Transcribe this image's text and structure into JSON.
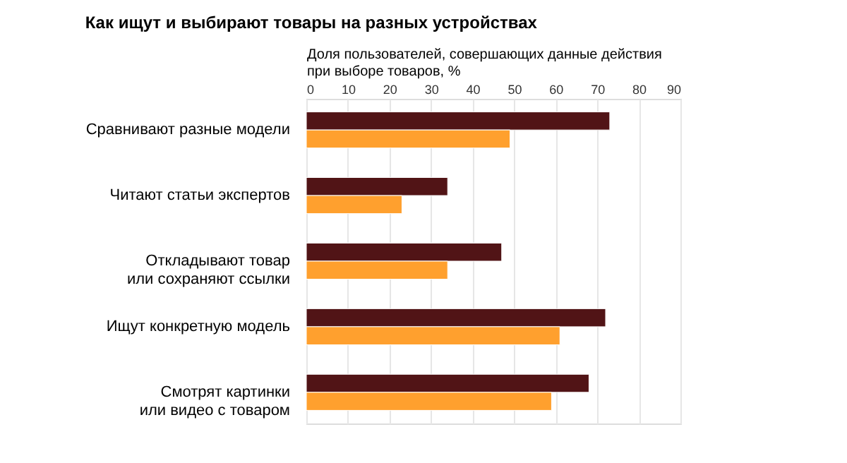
{
  "chart_data": {
    "type": "bar",
    "orientation": "horizontal",
    "title": "Как ищут и выбирают товары на разных устройствах",
    "xlabel": "Доля пользователей, совершающих данные действия\nпри выборе товаров, %",
    "categories": [
      "Сравнивают разные модели",
      "Читают статьи экспертов",
      "Откладывают товар\nили сохраняют ссылки",
      "Ищут конкретную модель",
      "Смотрят картинки\nили видео с товаром"
    ],
    "series": [
      {
        "color": "#511416",
        "values": [
          73,
          34,
          47,
          72,
          68
        ]
      },
      {
        "color": "#ffa02e",
        "values": [
          49,
          23,
          34,
          61,
          59
        ]
      }
    ],
    "xlim": [
      0,
      90
    ],
    "xticks": [
      0,
      10,
      20,
      30,
      40,
      50,
      60,
      70,
      80,
      90
    ],
    "grid": "x",
    "legend": false
  }
}
